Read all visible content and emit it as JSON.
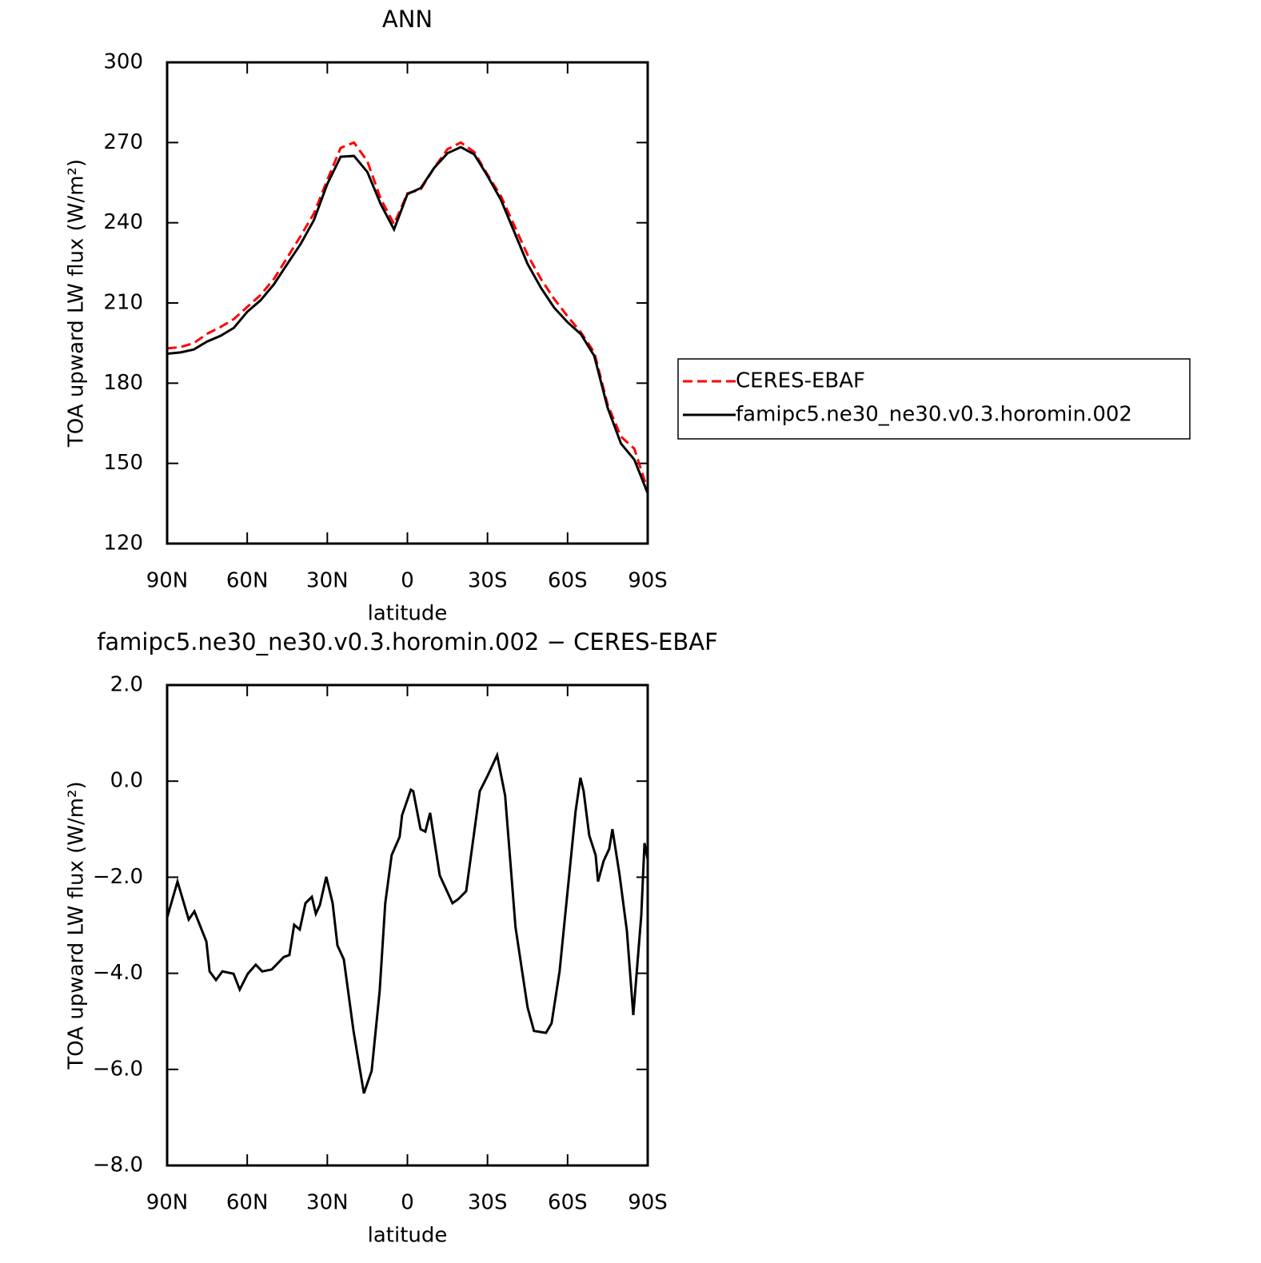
{
  "chart_data": [
    {
      "type": "line",
      "title": "ANN",
      "xlabel": "latitude",
      "ylabel": "TOA upward LW flux (W/m²)",
      "x": [
        90,
        85,
        80,
        75,
        70,
        65,
        60,
        55,
        50,
        45,
        40,
        35,
        30,
        25,
        20,
        15,
        10,
        5,
        0,
        -5,
        -10,
        -15,
        -20,
        -25,
        -30,
        -35,
        -40,
        -45,
        -50,
        -55,
        -60,
        -65,
        -70,
        -75,
        -80,
        -85,
        -90
      ],
      "series": [
        {
          "name": "CERES-EBAF",
          "color": "#ff0000",
          "style": "dashed",
          "values": [
            193,
            193.5,
            195,
            198.5,
            201,
            204,
            208.5,
            213,
            219,
            227,
            235,
            243.5,
            256,
            268,
            270,
            263,
            249,
            239.5,
            251,
            252.5,
            260.5,
            267.5,
            270,
            266.5,
            258,
            250,
            239,
            228,
            219,
            211.5,
            205,
            199,
            191.5,
            172,
            160,
            155.5,
            140
          ]
        },
        {
          "name": "famipc5.ne30_ne30.v0.3.horomin.002",
          "color": "#000000",
          "style": "solid",
          "values": [
            191,
            191.5,
            192.6,
            195.6,
            197.7,
            200.7,
            206.7,
            211,
            217,
            224.6,
            232,
            241,
            254.5,
            264.7,
            265,
            259,
            247,
            237.5,
            250.7,
            253,
            260.5,
            266,
            268.3,
            265.6,
            257.5,
            248.6,
            236.6,
            224.6,
            215.7,
            208.2,
            202.8,
            198.3,
            190.2,
            170.8,
            157.4,
            151.4,
            138.8
          ]
        }
      ],
      "xlim": [
        90,
        -90
      ],
      "xticks": [
        {
          "value": 90,
          "label": "90N"
        },
        {
          "value": 60,
          "label": "60N"
        },
        {
          "value": 30,
          "label": "30N"
        },
        0,
        {
          "value": -30,
          "label": "30S"
        },
        {
          "value": -60,
          "label": "60S"
        },
        {
          "value": -90,
          "label": "90S"
        }
      ],
      "ylim": [
        120,
        300
      ],
      "yticks": [
        120,
        150,
        180,
        210,
        240,
        270,
        300
      ],
      "legend": "right"
    },
    {
      "type": "line",
      "title": "famipc5.ne30_ne30.v0.3.horomin.002 − CERES-EBAF",
      "xlabel": "latitude",
      "ylabel": "TOA upward LW flux (W/m²)",
      "x": [
        90,
        86.1,
        81.9,
        79.8,
        75.3,
        74.1,
        71.7,
        69.3,
        65.1,
        62.8,
        59.8,
        56.8,
        54.4,
        50.8,
        46.3,
        44.2,
        42.4,
        40.3,
        38.2,
        35.8,
        34.3,
        32.8,
        30.4,
        28.0,
        26.2,
        23.8,
        20.2,
        16.3,
        13.4,
        10.4,
        8.3,
        5.9,
        2.9,
        2.0,
        -1.3,
        -2.2,
        -4.9,
        -6.7,
        -8.5,
        -12.1,
        -16.9,
        -19.0,
        -22.0,
        -27.1,
        -30.1,
        -33.6,
        -36.6,
        -40.5,
        -45.0,
        -47.4,
        -51.9,
        -54.0,
        -57.0,
        -63.0,
        -64.8,
        -66.0,
        -68.1,
        -70.5,
        -71.4,
        -73.5,
        -75.6,
        -76.8,
        -79.5,
        -82.2,
        -84.6,
        -87.6,
        -88.8,
        -90
      ],
      "series": [
        {
          "color": "#000000",
          "style": "solid",
          "values": [
            -2.84,
            -2.09,
            -2.88,
            -2.71,
            -3.34,
            -3.96,
            -4.14,
            -3.96,
            -4.01,
            -4.34,
            -4.01,
            -3.82,
            -3.96,
            -3.92,
            -3.66,
            -3.62,
            -2.99,
            -3.09,
            -2.54,
            -2.41,
            -2.76,
            -2.58,
            -1.99,
            -2.54,
            -3.42,
            -3.71,
            -5.2,
            -6.5,
            -6.03,
            -4.37,
            -2.54,
            -1.54,
            -1.16,
            -0.71,
            -0.18,
            -0.21,
            -1.0,
            -1.05,
            -0.66,
            -1.96,
            -2.54,
            -2.46,
            -2.29,
            -0.21,
            0.12,
            0.54,
            -0.3,
            -3.04,
            -4.71,
            -5.2,
            -5.24,
            -5.04,
            -3.96,
            -0.63,
            0.07,
            -0.21,
            -1.13,
            -1.54,
            -2.09,
            -1.66,
            -1.41,
            -1.0,
            -1.96,
            -3.12,
            -4.87,
            -2.79,
            -1.29,
            -1.63
          ]
        }
      ],
      "xlim": [
        90,
        -90
      ],
      "xticks": [
        {
          "value": 90,
          "label": "90N"
        },
        {
          "value": 60,
          "label": "60N"
        },
        {
          "value": 30,
          "label": "30N"
        },
        0,
        {
          "value": -30,
          "label": "30S"
        },
        {
          "value": -60,
          "label": "60S"
        },
        {
          "value": -90,
          "label": "90S"
        }
      ],
      "ylim": [
        -8,
        2
      ],
      "yticks": [
        {
          "value": -8,
          "label": "−8.0"
        },
        {
          "value": -6,
          "label": "−6.0"
        },
        {
          "value": -4,
          "label": "−4.0"
        },
        {
          "value": -2,
          "label": "−2.0"
        },
        {
          "value": 0,
          "label": "0.0"
        },
        {
          "value": 2,
          "label": "2.0"
        }
      ]
    }
  ]
}
